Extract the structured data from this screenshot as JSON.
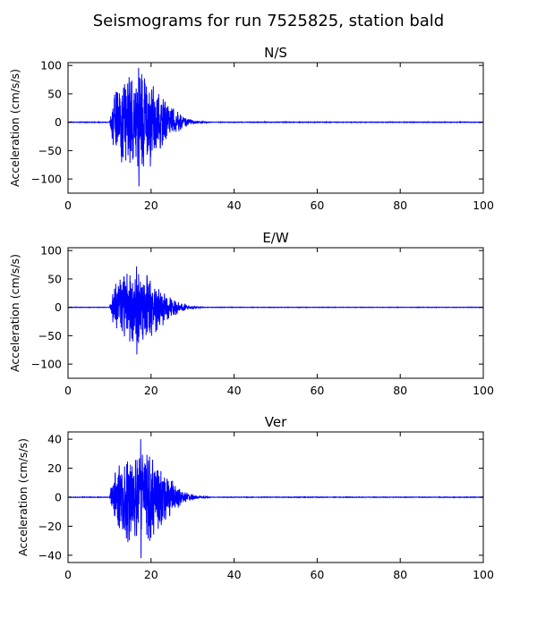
{
  "figure_title": "Seismograms for run 7525825, station bald",
  "colors": {
    "trace": "#0000ff",
    "axes": "#000000",
    "background": "#ffffff"
  },
  "chart_data": [
    {
      "type": "line",
      "title": "N/S",
      "xlabel": "",
      "ylabel": "Acceleration (cm/s/s)",
      "xlim": [
        0,
        100
      ],
      "ylim": [
        -125,
        105
      ],
      "xticks": [
        0,
        20,
        40,
        60,
        80,
        100
      ],
      "yticks": [
        100,
        50,
        0,
        -50,
        -100
      ],
      "grid": false,
      "signal": {
        "onset": 10,
        "end": 35,
        "peak": 96,
        "trough": -113,
        "peak_time": 17
      }
    },
    {
      "type": "line",
      "title": "E/W",
      "xlabel": "",
      "ylabel": "Acceleration (cm/s/s)",
      "xlim": [
        0,
        100
      ],
      "ylim": [
        -125,
        105
      ],
      "xticks": [
        0,
        20,
        40,
        60,
        80,
        100
      ],
      "yticks": [
        100,
        50,
        0,
        -50,
        -100
      ],
      "grid": false,
      "signal": {
        "onset": 10,
        "end": 33,
        "peak": 72,
        "trough": -83,
        "peak_time": 16.5
      }
    },
    {
      "type": "line",
      "title": "Ver",
      "xlabel": "",
      "ylabel": "Acceleration (cm/s/s)",
      "xlim": [
        0,
        100
      ],
      "ylim": [
        -45,
        45
      ],
      "xticks": [
        0,
        20,
        40,
        60,
        80,
        100
      ],
      "yticks": [
        40,
        20,
        0,
        -20,
        -40
      ],
      "grid": false,
      "signal": {
        "onset": 10,
        "end": 35,
        "peak": 40,
        "trough": -42,
        "peak_time": 17.5
      }
    }
  ]
}
